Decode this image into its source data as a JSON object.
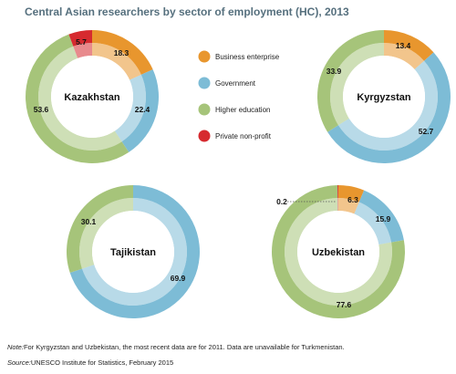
{
  "chart_data": {
    "type": "pie",
    "title": "Central Asian researchers by sector of employment (HC), 2013",
    "legend": {
      "placement": "center-top",
      "entries": [
        {
          "key": "business",
          "label": "Business enterprise",
          "color": "#e8962e"
        },
        {
          "key": "government",
          "label": "Government",
          "color": "#7dbcd6"
        },
        {
          "key": "higher",
          "label": "Higher education",
          "color": "#a6c47a"
        },
        {
          "key": "private",
          "label": "Private non-profit",
          "color": "#d62a2f"
        }
      ]
    },
    "charts": [
      {
        "country": "Kazakhstan",
        "slices": [
          {
            "key": "business",
            "value": 18.3,
            "label": "18.3"
          },
          {
            "key": "government",
            "value": 22.4,
            "label": "22.4"
          },
          {
            "key": "higher",
            "value": 53.6,
            "label": "53.6"
          },
          {
            "key": "private",
            "value": 5.7,
            "label": "5.7"
          }
        ]
      },
      {
        "country": "Kyrgyzstan",
        "slices": [
          {
            "key": "business",
            "value": 13.4,
            "label": "13.4"
          },
          {
            "key": "government",
            "value": 52.7,
            "label": "52.7"
          },
          {
            "key": "higher",
            "value": 33.9,
            "label": "33.9"
          }
        ]
      },
      {
        "country": "Tajikistan",
        "slices": [
          {
            "key": "government",
            "value": 69.9,
            "label": "69.9"
          },
          {
            "key": "higher",
            "value": 30.1,
            "label": "30.1"
          }
        ]
      },
      {
        "country": "Uzbekistan",
        "slices": [
          {
            "key": "business",
            "value": 6.3,
            "label": "6.3"
          },
          {
            "key": "government",
            "value": 15.9,
            "label": "15.9"
          },
          {
            "key": "higher",
            "value": 77.6,
            "label": "77.6"
          },
          {
            "key": "private",
            "value": 0.2,
            "label": "0.2"
          }
        ]
      }
    ]
  },
  "notes": {
    "note_label": "Note:",
    "note_text": "For Kyrgyzstan and Uzbekistan, the most recent data are for 2011. Data are unavailable for Turkmenistan.",
    "source_label": "Source:",
    "source_text": "UNESCO Institute for Statistics, February 2015"
  }
}
